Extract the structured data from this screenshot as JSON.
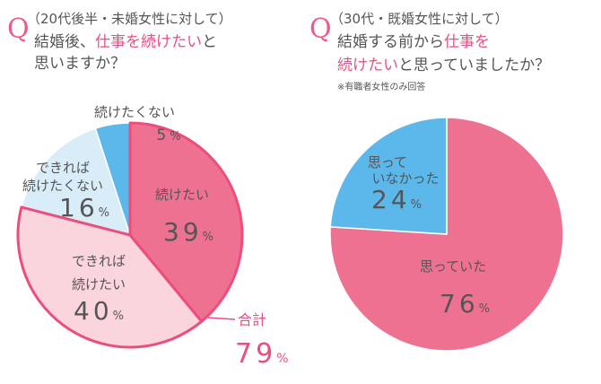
{
  "chart_data": [
    {
      "type": "pie",
      "question_mark": "Q",
      "header": "（20代後半・未婚女性に対して）",
      "question_parts": [
        "結婚後、",
        "仕事を続けたい",
        "と"
      ],
      "question_line3": "思いますか？",
      "labels": [
        [
          "続けたい"
        ],
        [
          "できれば",
          "続けたい"
        ],
        [
          "できれば",
          "続けたくない"
        ],
        [
          "続けたくない"
        ]
      ],
      "values": [
        39,
        40,
        16,
        5
      ],
      "unit": "%",
      "colors": [
        "#ef7191",
        "#fbd5de",
        "#d9edf9",
        "#5cb8ea"
      ],
      "total": {
        "label": "合計",
        "value": 79
      }
    },
    {
      "type": "pie",
      "question_mark": "Q",
      "header": "（30代・既婚女性に対して）",
      "question_parts": [
        "結婚する前から",
        "仕事を"
      ],
      "question_line3_parts": [
        "続けたい",
        "と思っていましたか？"
      ],
      "note": "※有職者女性のみ回答",
      "labels": [
        [
          "思っていた"
        ],
        [
          "思って",
          "いなかった"
        ]
      ],
      "values": [
        76,
        24
      ],
      "unit": "%",
      "colors": [
        "#ef7191",
        "#5cb8ea"
      ]
    }
  ]
}
